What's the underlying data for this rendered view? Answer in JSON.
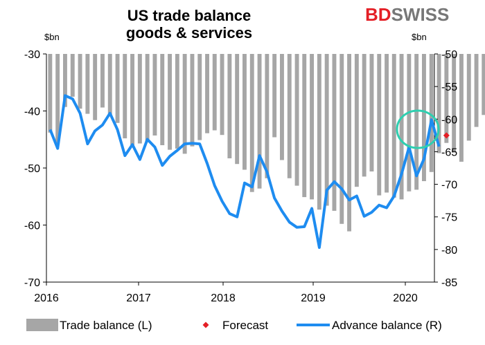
{
  "title_line1": "US trade balance",
  "title_line2": "goods & services",
  "logo": {
    "part1": "BD",
    "part2": "SWISS",
    "red": "#e41f26",
    "grey": "#777777"
  },
  "left_unit": "$bn",
  "right_unit": "$bn",
  "colors": {
    "bars": "#a6a6a6",
    "line": "#1e8cf0",
    "forecast": "#e41f26",
    "circle": "#2fcfb0"
  },
  "chart_data": {
    "type": "bar",
    "x_tick_labels": [
      "2016",
      "2017",
      "2018",
      "2019",
      "2020"
    ],
    "left_axis": {
      "min": -70,
      "max": -30,
      "ticks": [
        -30,
        -40,
        -50,
        -60,
        -70
      ]
    },
    "right_axis": {
      "min": -85,
      "max": -50,
      "ticks": [
        -50,
        -55,
        -60,
        -65,
        -70,
        -75,
        -80,
        -85
      ]
    },
    "series": [
      {
        "name": "Trade balance (L)",
        "type": "bar",
        "axis": "left",
        "values": [
          -43.8,
          -45.8,
          -39.3,
          -37.5,
          -39.6,
          -40.5,
          -41.6,
          -39.4,
          -40.8,
          -42.1,
          -44.8,
          -46.2,
          -45.7,
          -45.5,
          -44.3,
          -46.0,
          -46.8,
          -46.6,
          -47.5,
          -46.2,
          -45.1,
          -43.9,
          -43.4,
          -44.2,
          -48.3,
          -49.3,
          -50.3,
          -54.2,
          -53.6,
          -51.8,
          -44.6,
          -48.6,
          -51.8,
          -53.1,
          -55.1,
          -55.5,
          -57.3,
          -56.6,
          -57.5,
          -59.8,
          -61.1,
          -53.3,
          -51.5,
          -50.6,
          -54.8,
          -54.3,
          -55.2,
          -55.5,
          -54.1,
          -53.8,
          -52.3,
          -50.7,
          -47.4,
          -45.6,
          -47.3,
          -48.9,
          -45.2,
          -42.8,
          -40.7
        ],
        "color": "#a6a6a6"
      },
      {
        "name": "Advance balance (R)",
        "type": "line",
        "axis": "right",
        "values": [
          -61.6,
          -64.5,
          -56.4,
          -56.9,
          -59.1,
          -63.8,
          -61.8,
          -60.9,
          -59.1,
          -61.6,
          -65.6,
          -63.9,
          -66.2,
          -63.1,
          -64.3,
          -67.1,
          -65.7,
          -64.8,
          -63.8,
          -63.7,
          -63.8,
          -66.8,
          -70.2,
          -72.6,
          -74.5,
          -75.0,
          -69.8,
          -70.4,
          -65.6,
          -68.1,
          -72.1,
          -74.1,
          -75.8,
          -76.6,
          -76.5,
          -73.7,
          -79.7,
          -70.9,
          -69.6,
          -70.7,
          -72.4,
          -71.8,
          -74.9,
          -74.3,
          -73.2,
          -73.6,
          -71.8,
          -68.4,
          -64.3,
          -68.7,
          -66.1,
          -60.1,
          -64.2
        ],
        "color": "#1e8cf0"
      },
      {
        "name": "Forecast",
        "type": "scatter",
        "axis": "right",
        "points": [
          {
            "index": 53,
            "value": -62.5
          }
        ],
        "color": "#e41f26"
      }
    ],
    "legend_position": "bottom",
    "grid": false
  }
}
